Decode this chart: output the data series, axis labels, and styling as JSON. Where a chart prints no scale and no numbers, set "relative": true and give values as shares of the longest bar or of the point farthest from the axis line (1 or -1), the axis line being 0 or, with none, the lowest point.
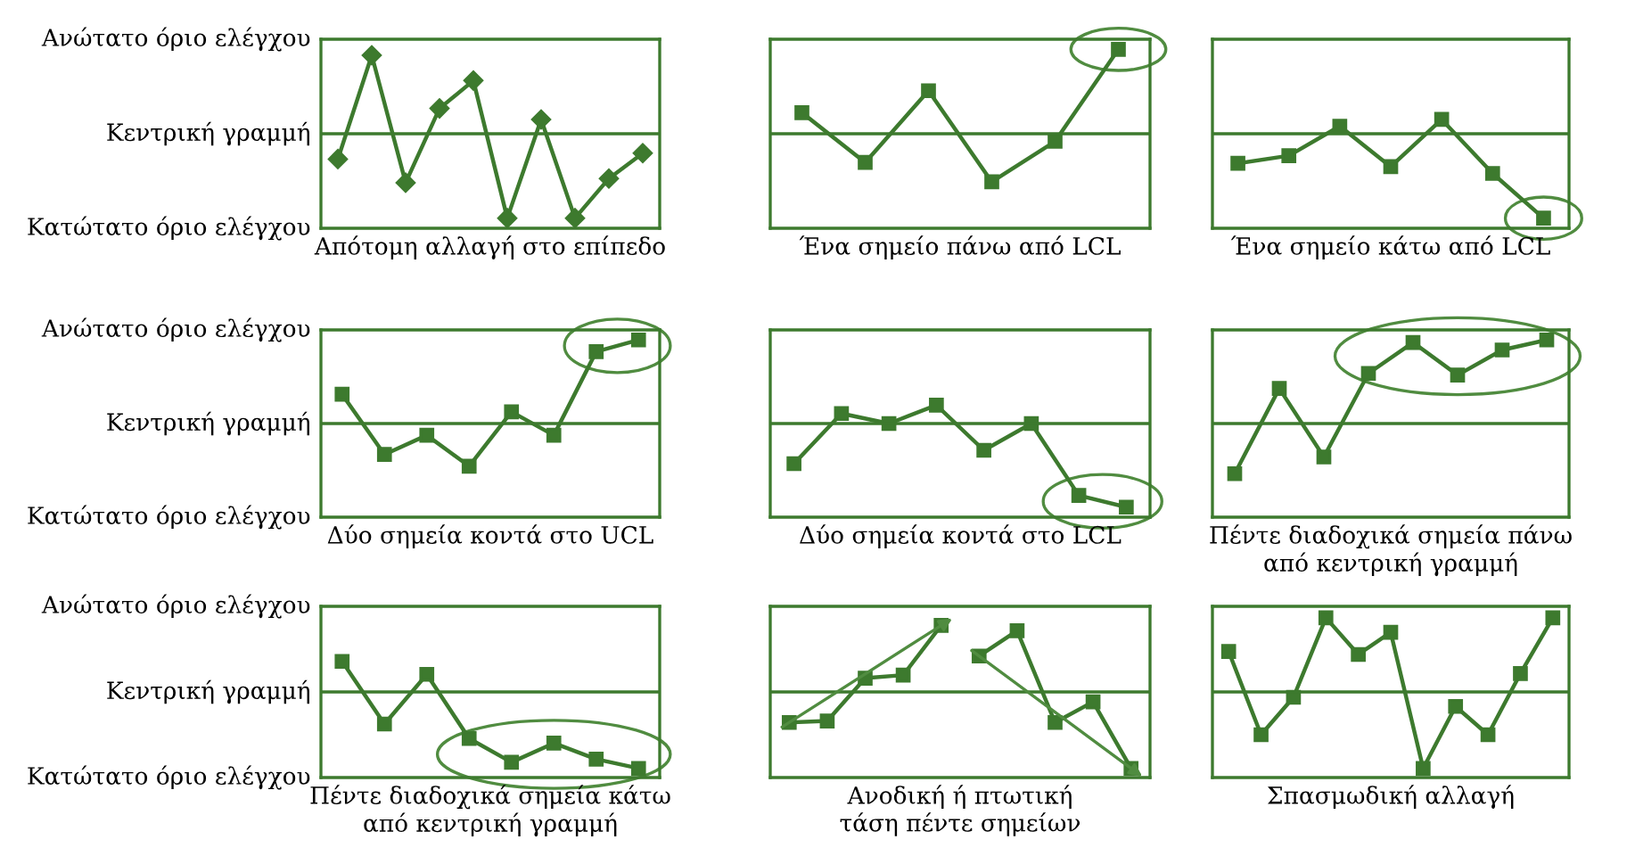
{
  "chart_data": [
    {
      "type": "line",
      "relative": true,
      "xlabel": "Απότομη αλλαγή στο επίπεδο",
      "categories": [
        null,
        null,
        null,
        null,
        null,
        null,
        null,
        null,
        null,
        null
      ],
      "series": [
        {
          "color": "#3d7a2e",
          "values": [
            -0.3,
            0.93,
            -0.58,
            0.3,
            0.63,
            -1,
            0.17,
            -1,
            -0.53,
            -0.23
          ]
        }
      ],
      "annotations": [
        "Ανώτατο όριο ελέγχου",
        "Κεντρική γραμμή",
        "Κατώτατο όριο ελέγχου"
      ],
      "ref_lines": [
        {
          "axis": "y",
          "value": 0,
          "color": "#3d7a2e"
        }
      ],
      "marker": "diamond"
    },
    {
      "type": "line",
      "relative": true,
      "xlabel": "Ένα σημείο πάνω από LCL",
      "categories": [
        null,
        null,
        null,
        null,
        null,
        null
      ],
      "series": [
        {
          "color": "#3d7a2e",
          "values": [
            0.25,
            -0.34,
            0.51,
            -0.57,
            -0.09,
            1
          ]
        }
      ],
      "ref_lines": [
        {
          "axis": "y",
          "value": 0,
          "color": "#3d7a2e"
        }
      ],
      "marker": "square"
    },
    {
      "type": "line",
      "relative": true,
      "xlabel": "Ένα σημείο κάτω από LCL",
      "categories": [
        null,
        null,
        null,
        null,
        null,
        null,
        null
      ],
      "series": [
        {
          "color": "#3d7a2e",
          "values": [
            -0.35,
            -0.26,
            0.09,
            -0.39,
            0.17,
            -0.47,
            -1
          ]
        }
      ],
      "ref_lines": [
        {
          "axis": "y",
          "value": 0,
          "color": "#3d7a2e"
        }
      ],
      "marker": "square"
    },
    {
      "type": "line",
      "relative": true,
      "xlabel": "Δύο σημεία κοντά στο UCL",
      "categories": [
        null,
        null,
        null,
        null,
        null,
        null,
        null,
        null
      ],
      "series": [
        {
          "color": "#3d7a2e",
          "values": [
            0.35,
            -0.37,
            -0.14,
            -0.51,
            0.14,
            -0.14,
            0.86,
            1
          ]
        }
      ],
      "annotations": [
        "Ανώτατο όριο ελέγχου",
        "Κεντρική γραμμή",
        "Κατώτατο όριο ελέγχου"
      ],
      "ref_lines": [
        {
          "axis": "y",
          "value": 0,
          "color": "#3d7a2e"
        }
      ],
      "marker": "square"
    },
    {
      "type": "line",
      "relative": true,
      "xlabel": "Δύο σημεία κοντά στο LCL",
      "categories": [
        null,
        null,
        null,
        null,
        null,
        null,
        null,
        null
      ],
      "series": [
        {
          "color": "#3d7a2e",
          "values": [
            -0.48,
            0.12,
            0,
            0.22,
            -0.32,
            0,
            -0.86,
            -1
          ]
        }
      ],
      "ref_lines": [
        {
          "axis": "y",
          "value": 0,
          "color": "#3d7a2e"
        }
      ],
      "marker": "square"
    },
    {
      "type": "line",
      "relative": true,
      "xlabel": "Πέντε διαδοχικά σημεία πάνω\nαπό κεντρική γραμμή",
      "categories": [
        null,
        null,
        null,
        null,
        null,
        null,
        null,
        null
      ],
      "series": [
        {
          "color": "#3d7a2e",
          "values": [
            -0.6,
            0.42,
            -0.4,
            0.6,
            0.97,
            0.58,
            0.88,
            1
          ]
        }
      ],
      "ref_lines": [
        {
          "axis": "y",
          "value": 0,
          "color": "#3d7a2e"
        }
      ],
      "marker": "square"
    },
    {
      "type": "line",
      "relative": true,
      "xlabel": "Πέντε διαδοχικά σημεία κάτω\nαπό κεντρική γραμμή",
      "categories": [
        null,
        null,
        null,
        null,
        null,
        null,
        null,
        null
      ],
      "series": [
        {
          "color": "#3d7a2e",
          "values": [
            0.4,
            -0.42,
            0.23,
            -0.61,
            -0.92,
            -0.67,
            -0.88,
            -1
          ]
        }
      ],
      "annotations": [
        "Ανώτατο όριο ελέγχου",
        "Κεντρική γραμμή",
        "Κατώτατο όριο ελέγχου"
      ],
      "ref_lines": [
        {
          "axis": "y",
          "value": 0,
          "color": "#3d7a2e"
        }
      ],
      "marker": "square"
    },
    {
      "type": "line",
      "relative": true,
      "xlabel": "Ανοδική ή πτωτική\nτάση πέντε σημείων",
      "categories": [
        null,
        null,
        null,
        null,
        null,
        null,
        null,
        null,
        null,
        null
      ],
      "series": [
        {
          "color": "#3d7a2e",
          "values": [
            -0.4,
            -0.38,
            0.18,
            0.22,
            0.87,
            null,
            null,
            null,
            null,
            null
          ]
        },
        {
          "color": "#3d7a2e",
          "values": [
            null,
            null,
            null,
            null,
            null,
            0.47,
            0.8,
            -0.4,
            -0.13,
            -1
          ]
        }
      ],
      "ref_lines": [
        {
          "axis": "y",
          "value": 0,
          "color": "#3d7a2e"
        }
      ],
      "marker": "square"
    },
    {
      "type": "line",
      "relative": true,
      "xlabel": "Σπασμωδική αλλαγή",
      "categories": [
        null,
        null,
        null,
        null,
        null,
        null,
        null,
        null,
        null,
        null,
        null
      ],
      "series": [
        {
          "color": "#3d7a2e",
          "values": [
            0.53,
            -0.56,
            -0.07,
            0.97,
            0.49,
            0.78,
            -1,
            -0.19,
            -0.56,
            0.24,
            0.97
          ]
        }
      ],
      "ref_lines": [
        {
          "axis": "y",
          "value": 0,
          "color": "#3d7a2e"
        }
      ],
      "marker": "square"
    }
  ]
}
